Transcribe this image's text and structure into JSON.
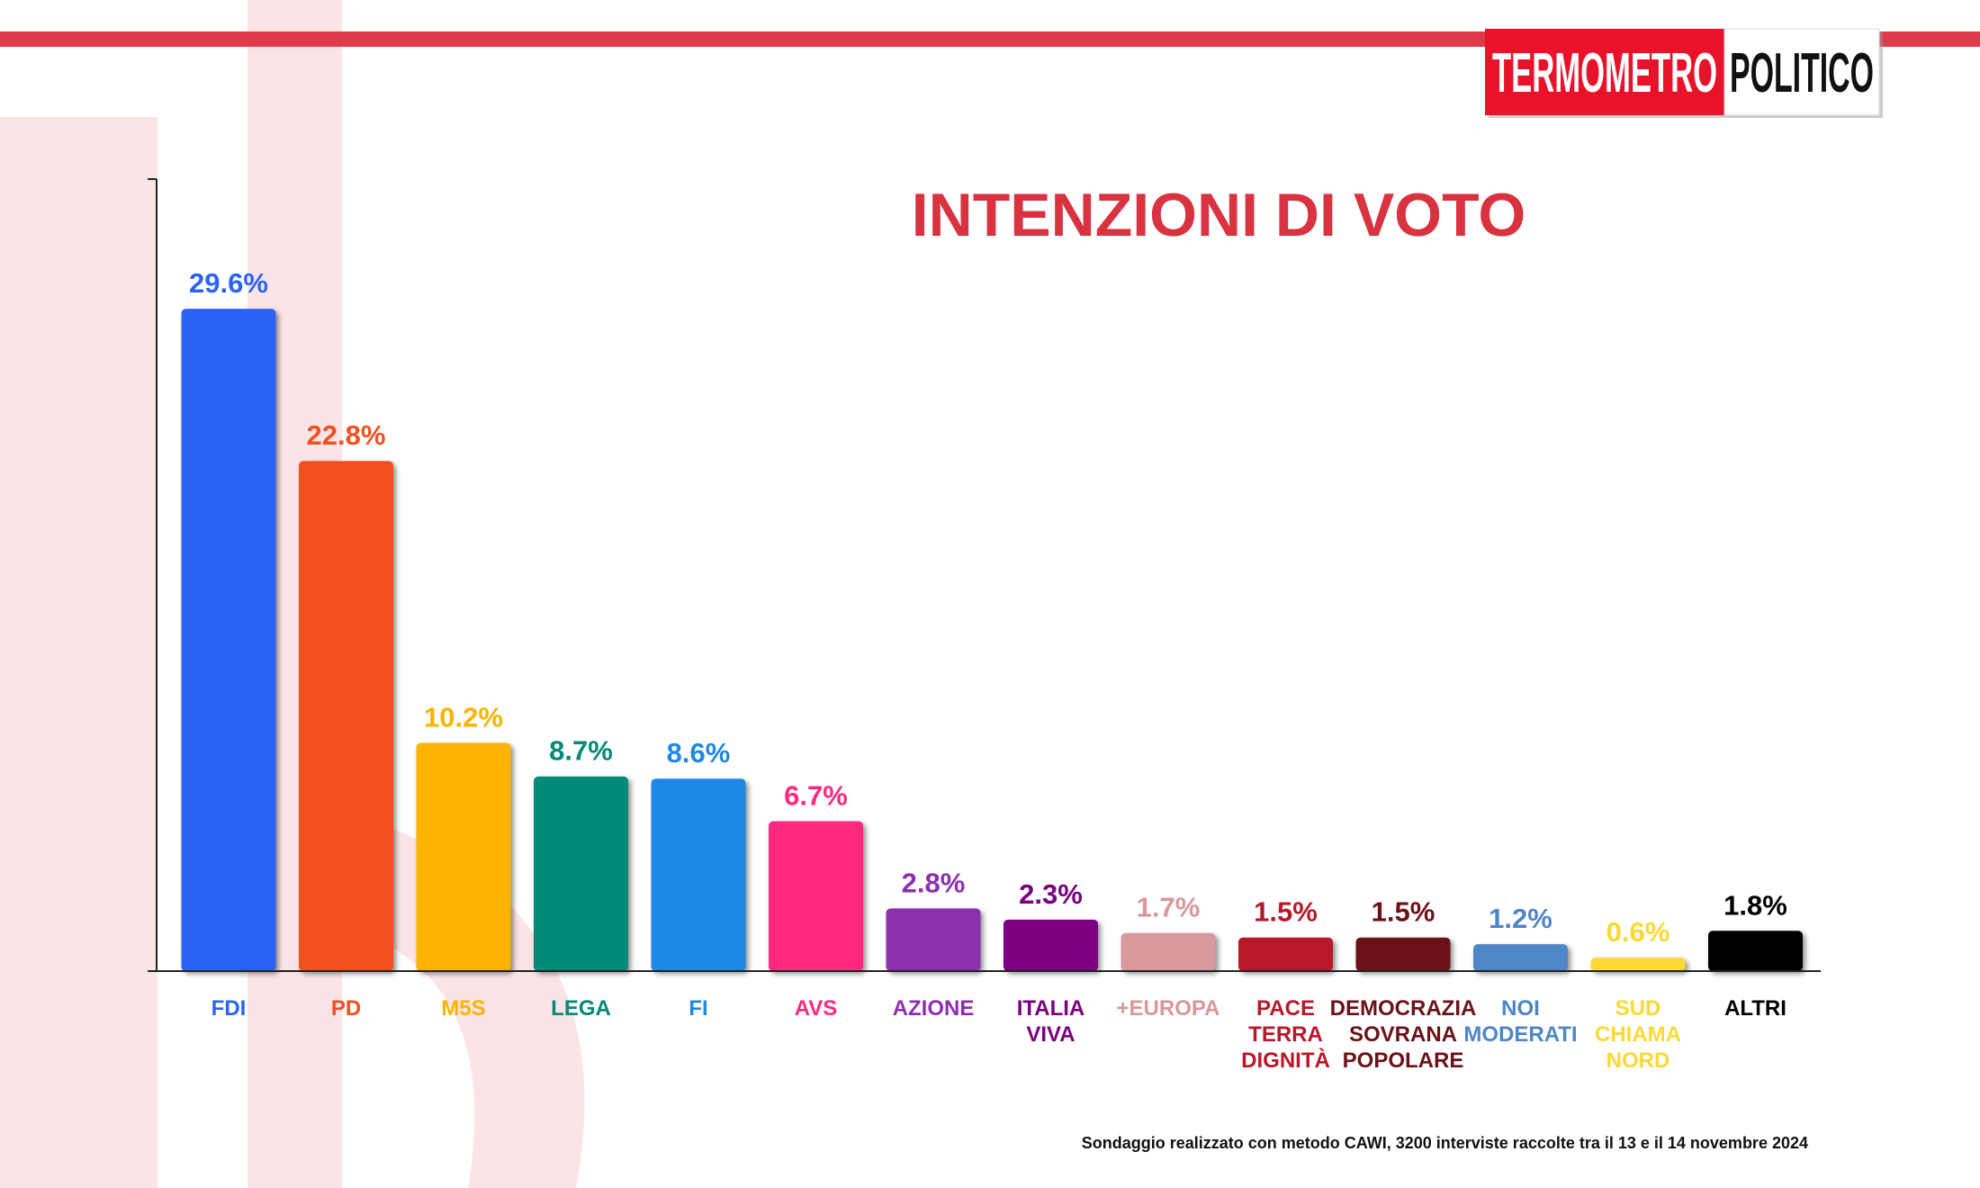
{
  "header": {
    "logo": [
      "TERMOMETRO",
      "POLITICO"
    ]
  },
  "chart_data": {
    "type": "bar",
    "title": "INTENZIONI DI VOTO",
    "categories": [
      [
        "FDI"
      ],
      [
        "PD"
      ],
      [
        "M5S"
      ],
      [
        "LEGA"
      ],
      [
        "FI"
      ],
      [
        "AVS"
      ],
      [
        "AZIONE"
      ],
      [
        "ITALIA",
        "VIVA"
      ],
      [
        "+EUROPA"
      ],
      [
        "PACE",
        "TERRA",
        "DIGNITÀ"
      ],
      [
        "DEMOCRAZIA",
        "SOVRANA",
        "POPOLARE"
      ],
      [
        "NOI",
        "MODERATI"
      ],
      [
        "SUD",
        "CHIAMA",
        "NORD"
      ],
      [
        "ALTRI"
      ]
    ],
    "values": [
      29.6,
      22.8,
      10.2,
      8.7,
      8.6,
      6.7,
      2.8,
      2.3,
      1.7,
      1.5,
      1.5,
      1.2,
      0.6,
      1.8
    ],
    "value_labels": [
      "29.6%",
      "22.8%",
      "10.2%",
      "8.7%",
      "8.6%",
      "6.7%",
      "2.8%",
      "2.3%",
      "1.7%",
      "1.5%",
      "1.5%",
      "1.2%",
      "0.6%",
      "1.8%"
    ],
    "colors": [
      "#2b63f6",
      "#f2501f",
      "#fdb300",
      "#008a78",
      "#1e88e5",
      "#ff2a7f",
      "#8e2fb0",
      "#7b007f",
      "#d9979e",
      "#b7182a",
      "#6b1218",
      "#4f86c6",
      "#fdd835",
      "#000000"
    ],
    "ylim": [
      0,
      35.4
    ],
    "note": "Sondaggio realizzato con metodo CAWI, 3200 interviste raccolte tra il 13 e il 14 novembre 2024"
  }
}
